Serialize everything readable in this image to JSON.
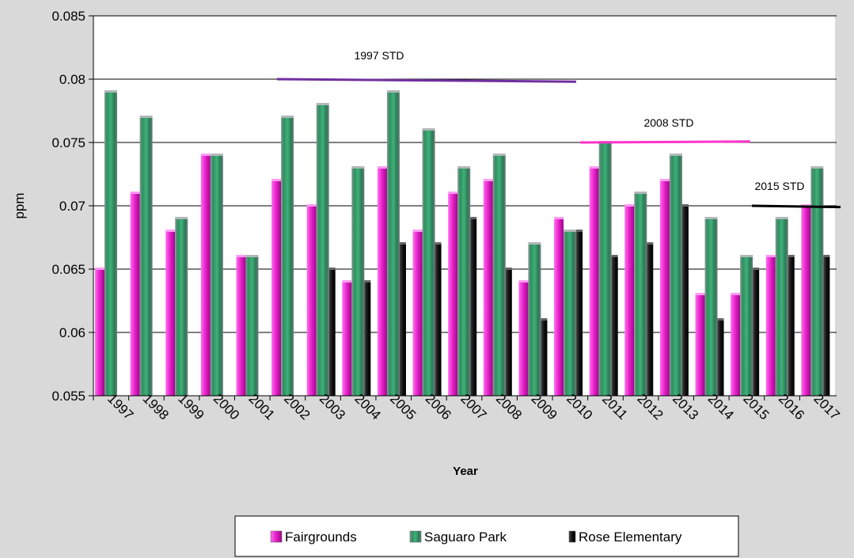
{
  "chart_data": {
    "type": "bar",
    "x_label": "Year",
    "y_label": "ppm",
    "categories": [
      "1997",
      "1998",
      "1999",
      "2000",
      "2001",
      "2002",
      "2003",
      "2004",
      "2005",
      "2006",
      "2007",
      "2008",
      "2009",
      "2010",
      "2011",
      "2012",
      "2013",
      "2014",
      "2015",
      "2016",
      "2017"
    ],
    "series": [
      {
        "name": "Fairgrounds",
        "color": "#e61ec8",
        "values": [
          0.065,
          0.071,
          0.068,
          0.074,
          0.066,
          0.072,
          0.07,
          0.064,
          0.073,
          0.068,
          0.071,
          0.072,
          0.064,
          0.069,
          0.073,
          0.07,
          0.072,
          0.063,
          0.063,
          0.066,
          0.07
        ]
      },
      {
        "name": "Saguaro Park",
        "color": "#3a9a6a",
        "values": [
          0.079,
          0.077,
          0.069,
          0.074,
          0.066,
          0.077,
          0.078,
          0.073,
          0.079,
          0.076,
          0.073,
          0.074,
          0.067,
          0.068,
          0.075,
          0.071,
          0.074,
          0.069,
          0.066,
          0.069,
          0.073
        ]
      },
      {
        "name": "Rose Elementary",
        "color": "#1a1a1a",
        "values": [
          null,
          null,
          null,
          null,
          null,
          null,
          0.065,
          0.064,
          0.067,
          0.067,
          0.069,
          0.065,
          0.061,
          0.068,
          0.066,
          0.067,
          0.07,
          0.061,
          0.065,
          0.066,
          0.066
        ]
      }
    ],
    "ylim": [
      0.055,
      0.085
    ],
    "yticks": [
      0.055,
      0.06,
      0.065,
      0.07,
      0.075,
      0.08,
      0.085
    ],
    "grid": true,
    "legend": "bottom",
    "annotations": [
      {
        "text": "1997 STD",
        "value": 0.08,
        "color": "#7030a0"
      },
      {
        "text": "2008 STD",
        "value": 0.075,
        "color": "#ff33cc"
      },
      {
        "text": "2015 STD",
        "value": 0.07,
        "color": "#000000"
      }
    ]
  }
}
